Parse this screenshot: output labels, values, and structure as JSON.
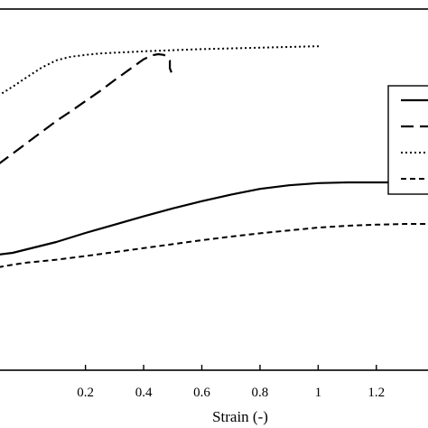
{
  "chart_data": {
    "type": "line",
    "title": "",
    "xlabel": "Strain (-)",
    "ylabel": "",
    "xlim": [
      -0.1,
      1.39
    ],
    "ylim": [
      0,
      1
    ],
    "x_ticks": [
      0.2,
      0.4,
      0.6,
      0.8,
      1,
      1.2
    ],
    "x_tick_labels": [
      "0.2",
      "0.4",
      "0.6",
      "0.8",
      "1",
      "1.2"
    ],
    "grid": false,
    "legend": {
      "position": "right",
      "entries": [
        {
          "style": "solid"
        },
        {
          "style": "long-dash"
        },
        {
          "style": "dotted"
        },
        {
          "style": "short-dash"
        }
      ]
    },
    "series": [
      {
        "style": "solid",
        "x": [
          -0.1,
          -0.05,
          0.0,
          0.05,
          0.1,
          0.2,
          0.3,
          0.4,
          0.5,
          0.6,
          0.7,
          0.8,
          0.9,
          1.0,
          1.1,
          1.2,
          1.3,
          1.39
        ],
        "y": [
          0.32,
          0.325,
          0.335,
          0.345,
          0.355,
          0.38,
          0.403,
          0.426,
          0.448,
          0.468,
          0.486,
          0.502,
          0.512,
          0.518,
          0.52,
          0.52,
          0.52,
          0.52
        ]
      },
      {
        "style": "long-dash",
        "x": [
          -0.1,
          -0.05,
          0.0,
          0.05,
          0.1,
          0.15,
          0.2,
          0.25,
          0.3,
          0.35,
          0.4,
          0.43,
          0.45,
          0.47,
          0.48,
          0.49,
          0.49,
          0.5
        ],
        "y": [
          0.57,
          0.6,
          0.63,
          0.66,
          0.69,
          0.717,
          0.745,
          0.773,
          0.803,
          0.832,
          0.861,
          0.872,
          0.875,
          0.873,
          0.867,
          0.857,
          0.836,
          0.815
        ]
      },
      {
        "style": "dotted",
        "x": [
          -0.1,
          -0.05,
          0.0,
          0.05,
          0.1,
          0.15,
          0.2,
          0.25,
          0.3,
          0.4,
          0.5,
          0.6,
          0.7,
          0.8,
          0.9,
          1.0,
          1.01
        ],
        "y": [
          0.76,
          0.785,
          0.812,
          0.838,
          0.858,
          0.868,
          0.873,
          0.877,
          0.879,
          0.883,
          0.886,
          0.889,
          0.891,
          0.893,
          0.895,
          0.897,
          0.897
        ]
      },
      {
        "style": "short-dash",
        "x": [
          -0.1,
          -0.05,
          0.0,
          0.1,
          0.2,
          0.3,
          0.4,
          0.5,
          0.6,
          0.7,
          0.8,
          0.9,
          1.0,
          1.1,
          1.2,
          1.3,
          1.39
        ],
        "y": [
          0.285,
          0.292,
          0.298,
          0.306,
          0.316,
          0.327,
          0.338,
          0.349,
          0.36,
          0.37,
          0.379,
          0.387,
          0.395,
          0.4,
          0.403,
          0.405,
          0.405
        ]
      }
    ]
  }
}
